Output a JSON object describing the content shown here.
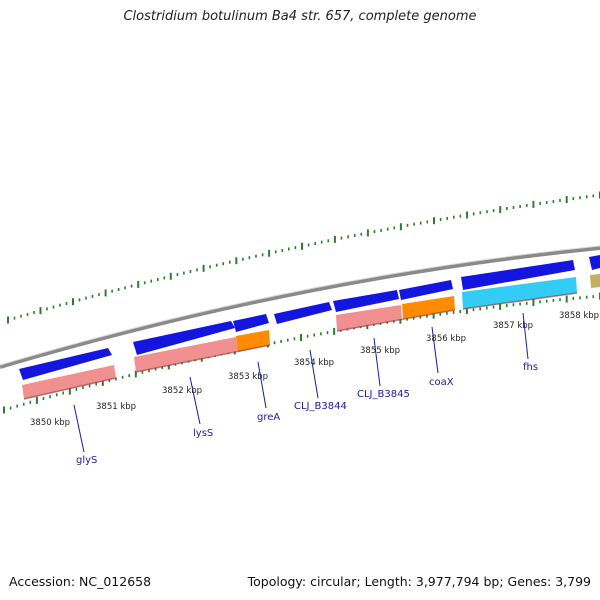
{
  "title": "Clostridium botulinum Ba4 str. 657, complete genome",
  "footer": {
    "accession": "Accession: NC_012658",
    "topology": "Topology: circular; Length: 3,977,794 bp; Genes: 3,799"
  },
  "colors": {
    "backbone": "#8a8a8a",
    "tick": "#2e7d2e",
    "cds_forward": "#1515e0",
    "cds_pink": "#f09090",
    "cds_orange": "#ff8c00",
    "cds_cyan": "#33ccf5",
    "cds_olive": "#c0b060",
    "label": "#1a1aa0"
  },
  "ruler": [
    {
      "label": "3850 kbp"
    },
    {
      "label": "3851 kbp"
    },
    {
      "label": "3852 kbp"
    },
    {
      "label": "3853 kbp"
    },
    {
      "label": "3854 kbp"
    },
    {
      "label": "3855 kbp"
    },
    {
      "label": "3856 kbp"
    },
    {
      "label": "3857 kbp"
    },
    {
      "label": "3858 kbp"
    }
  ],
  "gene_labels": [
    {
      "label": "glyS"
    },
    {
      "label": "lysS"
    },
    {
      "label": "greA"
    },
    {
      "label": "CLJ_B3844"
    },
    {
      "label": "CLJ_B3845"
    },
    {
      "label": "coaX"
    },
    {
      "label": "fhs"
    }
  ]
}
